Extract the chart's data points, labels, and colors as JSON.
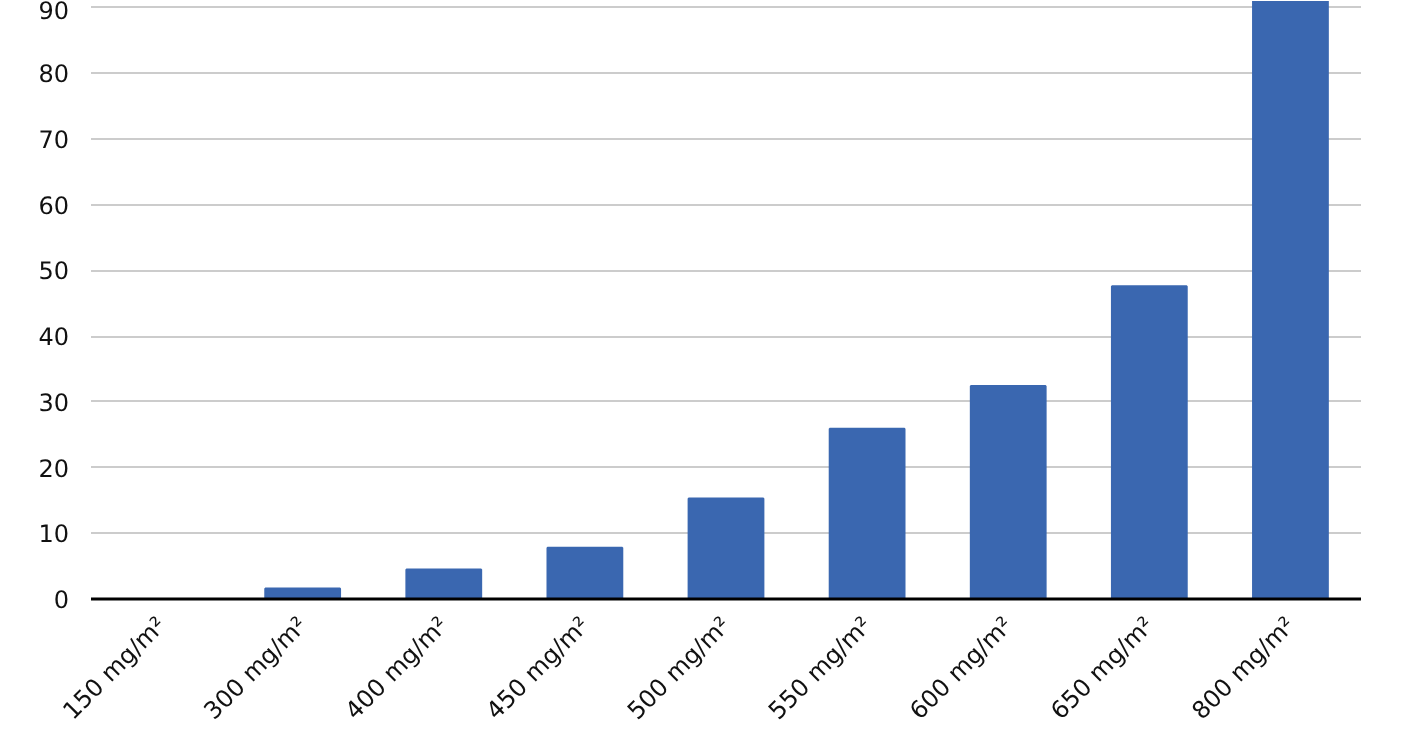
{
  "chart_data": {
    "type": "bar",
    "categories": [
      "150 mg/m²",
      "300 mg/m²",
      "400 mg/m²",
      "450 mg/m²",
      "500 mg/m²",
      "550 mg/m²",
      "600 mg/m²",
      "650 mg/m²",
      "800 mg/m²"
    ],
    "values": [
      0,
      1.6,
      4.5,
      7.8,
      15.3,
      25.9,
      32.4,
      47.6,
      91
    ],
    "color": "#3a67b0",
    "ylim": [
      0,
      91
    ],
    "yticks": [
      0,
      10,
      20,
      30,
      40,
      50,
      60,
      70,
      80,
      90
    ],
    "grid": "y"
  }
}
